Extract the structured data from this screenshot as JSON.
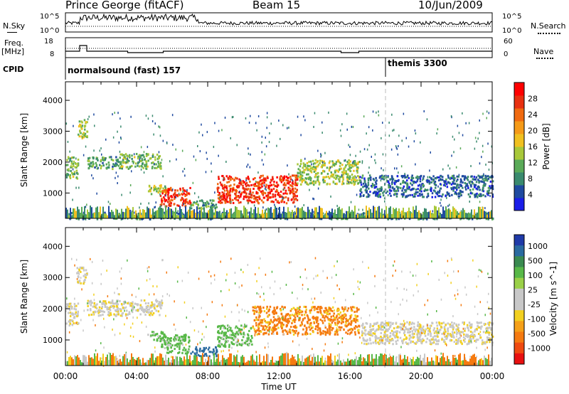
{
  "header": {
    "title": "Prince George (fitACF)",
    "beam": "Beam 15",
    "date": "10/Jun/2009"
  },
  "top_panels": {
    "nsky_label": "N.Sky",
    "nsky_ticks": [
      "10^5",
      "10^0"
    ],
    "nsearch_label": "N.Search",
    "nsearch_ticks": [
      "10^5",
      "10^0"
    ],
    "freq_label": "Freq.",
    "freq_unit": "[MHz]",
    "freq_ticks": [
      "18",
      "8"
    ],
    "nave_label": "Nave",
    "nave_ticks": [
      "60",
      "0"
    ],
    "cpid_label": "CPID",
    "cpid_segments": [
      {
        "label": "normalsound (fast) 157",
        "start_hour": 0
      },
      {
        "label": "themis 3300",
        "start_hour": 18
      }
    ]
  },
  "axes": {
    "ylabel": "Slant Range [km]",
    "yticks": [
      "1000",
      "2000",
      "3000",
      "4000"
    ],
    "xlabel": "Time UT",
    "xticks": [
      "00:00",
      "04:00",
      "08:00",
      "12:00",
      "16:00",
      "20:00",
      "00:00"
    ]
  },
  "colorbars": {
    "power": {
      "label": "Power [dB]",
      "ticks": [
        "4",
        "8",
        "12",
        "16",
        "20",
        "24",
        "28"
      ],
      "colors": [
        "#1a1ee8",
        "#1f4aa0",
        "#3a8a6e",
        "#5aaa58",
        "#a8c83a",
        "#f0c020",
        "#f59a18",
        "#f06a10",
        "#e83010",
        "#ff0000"
      ]
    },
    "velocity": {
      "label": "Velocity [m s^-1]",
      "ticks": [
        "1000",
        "500",
        "100",
        "25",
        "-25",
        "-100",
        "-500",
        "-1000"
      ],
      "colors": [
        "#1f3aa8",
        "#2a6aa0",
        "#3a8a50",
        "#58b848",
        "#9ad048",
        "#c8c8c8",
        "#c8c8c8",
        "#f2d020",
        "#f5a018",
        "#f57a10",
        "#ef4a10",
        "#e81010"
      ]
    }
  },
  "chart_data": {
    "type": "heatmap",
    "title": "Prince George (fitACF)",
    "xlabel": "Time UT",
    "ylabel": "Slant Range [km]",
    "xlim_hours": [
      0,
      24
    ],
    "ylim_km": [
      180,
      4600
    ],
    "panels": [
      "Power [dB]",
      "Velocity [m s^-1]"
    ],
    "power_regions": [
      {
        "t0": 0.0,
        "t1": 0.7,
        "r0": 1500,
        "r1": 2200,
        "power_db": 12
      },
      {
        "t0": 0.6,
        "t1": 1.2,
        "r0": 2800,
        "r1": 3400,
        "power_db": 14
      },
      {
        "t0": 1.2,
        "t1": 3.0,
        "r0": 1800,
        "r1": 2200,
        "power_db": 10
      },
      {
        "t0": 3.0,
        "t1": 5.4,
        "r0": 1800,
        "r1": 2300,
        "power_db": 12
      },
      {
        "t0": 4.6,
        "t1": 5.6,
        "r0": 1000,
        "r1": 1300,
        "power_db": 14
      },
      {
        "t0": 5.3,
        "t1": 7.0,
        "r0": 600,
        "r1": 1200,
        "power_db": 26
      },
      {
        "t0": 7.0,
        "t1": 8.5,
        "r0": 500,
        "r1": 800,
        "power_db": 10
      },
      {
        "t0": 8.5,
        "t1": 13.0,
        "r0": 700,
        "r1": 1600,
        "power_db": 26
      },
      {
        "t0": 13.0,
        "t1": 16.5,
        "r0": 1300,
        "r1": 2100,
        "power_db": 14
      },
      {
        "t0": 16.5,
        "t1": 24.0,
        "r0": 900,
        "r1": 1600,
        "power_db": 6
      },
      {
        "t0": 0.0,
        "t1": 24.0,
        "r0": 180,
        "r1": 400,
        "power_db": 8
      }
    ],
    "velocity_regions": [
      {
        "t0": 0.0,
        "t1": 0.7,
        "r0": 1500,
        "r1": 2200,
        "velocity": 0
      },
      {
        "t0": 0.6,
        "t1": 1.2,
        "r0": 2800,
        "r1": 3400,
        "velocity": 0
      },
      {
        "t0": 1.2,
        "t1": 5.4,
        "r0": 1800,
        "r1": 2300,
        "velocity": 0
      },
      {
        "t0": 4.6,
        "t1": 5.6,
        "r0": 1000,
        "r1": 1300,
        "velocity": 100
      },
      {
        "t0": 5.3,
        "t1": 7.0,
        "r0": 600,
        "r1": 1200,
        "velocity": 100
      },
      {
        "t0": 7.0,
        "t1": 8.5,
        "r0": 500,
        "r1": 800,
        "velocity": 500
      },
      {
        "t0": 8.5,
        "t1": 10.5,
        "r0": 800,
        "r1": 1500,
        "velocity": 100
      },
      {
        "t0": 10.5,
        "t1": 16.5,
        "r0": 1200,
        "r1": 2100,
        "velocity": -100
      },
      {
        "t0": 16.5,
        "t1": 24.0,
        "r0": 900,
        "r1": 1600,
        "velocity": 0
      }
    ]
  }
}
